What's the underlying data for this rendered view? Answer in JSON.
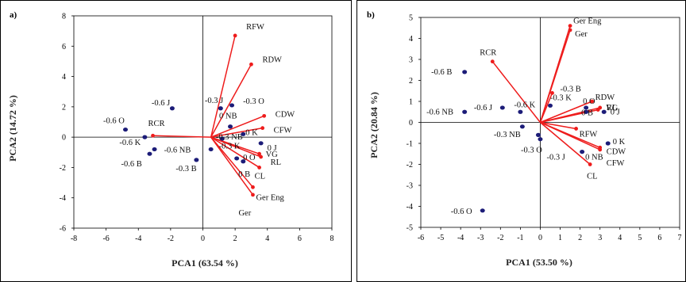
{
  "chart_data": [
    {
      "type": "scatter",
      "panel_label": "a)",
      "xlabel": "PCA1 (63.54 %)",
      "ylabel": "PCA2 (14.72 %)",
      "xlim": [
        -8,
        8
      ],
      "ylim": [
        -6,
        8
      ],
      "xticks": [
        -8,
        -6,
        -4,
        -2,
        0,
        2,
        4,
        6,
        8
      ],
      "yticks": [
        -6,
        -4,
        -2,
        0,
        2,
        4,
        6,
        8
      ],
      "grid": false,
      "origin": [
        -3.1,
        0.1
      ],
      "vectors": [
        {
          "name": "RFW",
          "x": 2.0,
          "y": 6.7
        },
        {
          "name": "RDW",
          "x": 3.0,
          "y": 4.8
        },
        {
          "name": "CDW",
          "x": 3.8,
          "y": 1.4
        },
        {
          "name": "CFW",
          "x": 3.7,
          "y": 0.6
        },
        {
          "name": "VG",
          "x": 3.5,
          "y": -1.1
        },
        {
          "name": "RL",
          "x": 3.6,
          "y": -1.3
        },
        {
          "name": "CL",
          "x": 3.5,
          "y": -2.0
        },
        {
          "name": "Ger Eng",
          "x": 3.1,
          "y": -3.3
        },
        {
          "name": "Ger",
          "x": 3.1,
          "y": -3.8
        },
        {
          "name": "RCR",
          "x": -3.1,
          "y": 0.1
        }
      ],
      "points": [
        {
          "name": "-0.6 J",
          "x": -1.9,
          "y": 1.9
        },
        {
          "name": "-0.6 O",
          "x": -4.8,
          "y": 0.5
        },
        {
          "name": "-0.6 K",
          "x": -3.6,
          "y": 0.0
        },
        {
          "name": "-0.6 NB",
          "x": -3.0,
          "y": -0.8
        },
        {
          "name": "-0.6 B",
          "x": -3.3,
          "y": -1.1
        },
        {
          "name": "-0.3 J",
          "x": 1.1,
          "y": 1.9
        },
        {
          "name": "-0.3 O",
          "x": 1.8,
          "y": 2.1
        },
        {
          "name": "0 NB",
          "x": 1.7,
          "y": 0.7
        },
        {
          "name": "-0.3 NB",
          "x": 1.2,
          "y": -0.1
        },
        {
          "name": "0 K",
          "x": 2.5,
          "y": 0.2
        },
        {
          "name": "0 J",
          "x": 3.6,
          "y": -0.4
        },
        {
          "name": "-0.3 K",
          "x": 0.5,
          "y": -0.8
        },
        {
          "name": "-0.3 B",
          "x": -0.4,
          "y": -1.5
        },
        {
          "name": "0 O",
          "x": 2.1,
          "y": -1.4
        },
        {
          "name": "0 B",
          "x": 2.5,
          "y": -1.6
        }
      ]
    },
    {
      "type": "scatter",
      "panel_label": "b)",
      "xlabel": "PCA1 (53.50 %)",
      "ylabel": "PCA2 (20.84 %)",
      "xlim": [
        -6,
        7
      ],
      "ylim": [
        -5,
        5
      ],
      "xticks": [
        -6,
        -5,
        -4,
        -3,
        -2,
        -1,
        0,
        1,
        2,
        3,
        4,
        5,
        6,
        7
      ],
      "yticks": [
        -5,
        -4,
        -3,
        -2,
        -1,
        0,
        1,
        2,
        3,
        4,
        5
      ],
      "grid": false,
      "origin": [
        0,
        0
      ],
      "vectors": [
        {
          "name": "Ger Eng",
          "x": 1.5,
          "y": 4.6
        },
        {
          "name": "Ger",
          "x": 1.5,
          "y": 4.4
        },
        {
          "name": "RCR",
          "x": -2.4,
          "y": 2.9
        },
        {
          "name": "-0.3 B",
          "x": 0.6,
          "y": 1.4
        },
        {
          "name": "RDW",
          "x": 2.6,
          "y": 1.0
        },
        {
          "name": "RL",
          "x": 3.0,
          "y": 0.7
        },
        {
          "name": "VG",
          "x": 2.9,
          "y": 0.6
        },
        {
          "name": "RFW",
          "x": 1.8,
          "y": -0.3
        },
        {
          "name": "CDW",
          "x": 3.0,
          "y": -1.2
        },
        {
          "name": "CFW",
          "x": 3.0,
          "y": -1.3
        },
        {
          "name": "CL",
          "x": 2.5,
          "y": -2.0
        }
      ],
      "points": [
        {
          "name": "-0.6 B",
          "x": -3.8,
          "y": 2.4
        },
        {
          "name": "-0.6 NB",
          "x": -3.8,
          "y": 0.5
        },
        {
          "name": "-0.6 J",
          "x": -1.9,
          "y": 0.7
        },
        {
          "name": "-0.6 K",
          "x": -1.0,
          "y": 0.5
        },
        {
          "name": "-0.3 NB",
          "x": -0.9,
          "y": -0.2
        },
        {
          "name": "-0.3 K",
          "x": 0.5,
          "y": 0.8
        },
        {
          "name": "0 O",
          "x": 2.3,
          "y": 0.7
        },
        {
          "name": "0 B",
          "x": 2.3,
          "y": 0.5
        },
        {
          "name": "0 J",
          "x": 3.2,
          "y": 0.5
        },
        {
          "name": "0 K",
          "x": 3.4,
          "y": -1.0
        },
        {
          "name": "-0.3 O",
          "x": -0.1,
          "y": -0.6
        },
        {
          "name": "-0.3 J",
          "x": 0.0,
          "y": -0.8
        },
        {
          "name": "0 NB",
          "x": 2.1,
          "y": -1.4
        },
        {
          "name": "-0.6 O",
          "x": -2.9,
          "y": -4.2
        }
      ]
    }
  ]
}
